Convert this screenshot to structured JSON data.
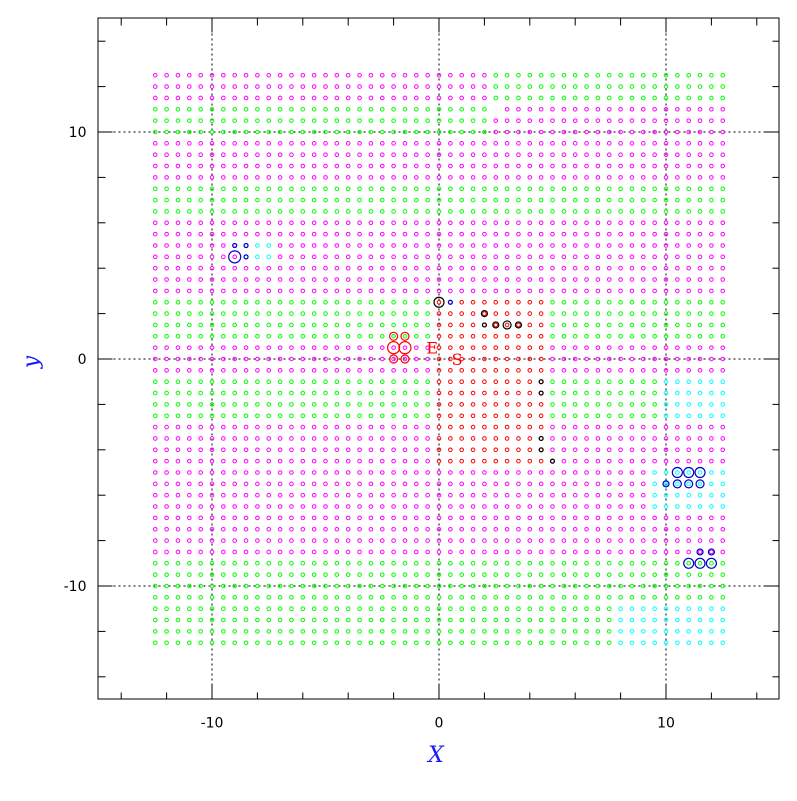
{
  "chart_data": {
    "type": "scatter",
    "xlabel": "X",
    "ylabel": "y",
    "xlim": [
      -15,
      15
    ],
    "ylim": [
      -15,
      15
    ],
    "xticks": [
      -10,
      0,
      10
    ],
    "yticks": [
      -10,
      0,
      10
    ],
    "xminorticks": [
      -14,
      -12,
      -8,
      -6,
      -4,
      -2,
      2,
      4,
      6,
      8,
      12,
      14
    ],
    "yminorticks": [
      -14,
      -12,
      -8,
      -6,
      -4,
      -2,
      2,
      4,
      6,
      8,
      12,
      14
    ],
    "grid": true,
    "point_grid": {
      "x": [
        -12.5,
        -12,
        -11.5,
        -11,
        -10.5,
        -10,
        -9.5,
        -9,
        -8.5,
        -8,
        -7.5,
        -7,
        -6.5,
        -6,
        -5.5,
        -5,
        -4.5,
        -4,
        -3.5,
        -3,
        -2.5,
        -2,
        -1.5,
        -1,
        -0.5,
        0,
        0.5,
        1,
        1.5,
        2,
        2.5,
        3,
        3.5,
        4,
        4.5,
        5,
        5.5,
        6,
        6.5,
        7,
        7.5,
        8,
        8.5,
        9,
        9.5,
        10,
        10.5,
        11,
        11.5,
        12,
        12.5
      ],
      "y": [
        12.5,
        12,
        11.5,
        11,
        10.5,
        10,
        9.5,
        9,
        8.5,
        8,
        7.5,
        7,
        6.5,
        6,
        5.5,
        5,
        4.5,
        4,
        3.5,
        3,
        2.5,
        2,
        1.5,
        1,
        0.5,
        0,
        -0.5,
        -1,
        -1.5,
        -2,
        -2.5,
        -3,
        -3.5,
        -4,
        -4.5,
        -5,
        -5.5,
        -6,
        -6.5,
        -7,
        -7.5,
        -8,
        -8.5,
        -9,
        -9.5,
        -10,
        -10.5,
        -11,
        -11.5,
        -12,
        -12.5
      ],
      "palette": {
        "m": "#ff00ff",
        "g": "#00ff00",
        "c": "#00ffff",
        "r": "#ff0000"
      },
      "rows": [
        "mmmmmmmmmmmmmmmmmmmmmmmmmmmmmmggggggggggggggggggggg",
        "mmmmmmmmmmmmmmmmmmmmmmmmmmmmmmggggggggggggggggggggg",
        "mmmmmmmmmmmmmmmmmmmmmmmmmmmmmmggggggggggggggggggggg",
        "gggggggggggggggggggggggggggggglmmmmmmmmmmmmmmmmmmmm",
        "ggggggggggggggggggggggggggggggmmmmmmmmmmmmmmmmmmmmm",
        "ggggggggggggggggggggggggggggggmmmmmmmmmmmmmmmmmmmmm",
        "mmmmmmmmmmmmmmmmmmmmmmmmmmmmmmmmmmmmmmmmmmmmmmmmmmm",
        "mmmmmmmmmmmmmmmmmmmmmmmmmmmmmmmmmmmmmmmmmmmmmmmmmmm",
        "mmmmmmmmmmmmmmmmmmmmmmmmmmmmmmmmmmmmmmmmmmmmmmmmmmm",
        "mmmmmmmmmmmmmmmmmmmmmmmmmmmmmmmmmmmmmmmmmmmmmmmmmmm",
        "ggggggggggggggggggggggggggggggggggggggggggggggggggg",
        "ggggggggggggggggggggggggggggggggggggggggggggggggggg",
        "ggggggggggggggggggggggggggggggggggggggggggggggggggg",
        "mmmmmmmmmmmmmmmmmmmmmmmmmmmmmmmmmmmmmmmmmmmmmmmmmmm",
        "mmmmmmmmmmmmmmmmmmmmmmmmmmmmmmmmmmmmmmmmmmmmmmmmmmm",
        "mmmmmmmmcccmmmmmmmmmmmmmmmmmmmmmmmmmmmmmmmmmmmmmmmm",
        "mmmmmmmmcccmmmmmmmmmmmmmmmmmmmmmmmmmmmmmmmmmmmmmmmm",
        "mmmmmmmmmmmmmmmmmmmmmmmmmmmmmmmmmmmmmmmmmmmmmmmmmmm",
        "mmmmmmmmmmmmmmmmmmmmmmmmmmmmmmmmmmmmmmmmmmmmmmmmmmm",
        "mmmmmmmmmmmmmmmmmmmmmmmmmmmmmmmmmmmmmmmmmmmmmmmmmmm",
        "gggggggggggggggggggggggggrrrrrrrrrrggggggggggggggggg",
        "gggggggggggggggggggggggggrrrrrrrrrrggggggggggggggggg",
        "gggggggggggggggggggggggggrrrrrrrrrrggggggggggggggggg",
        "gggggggggggggggggggggggggrrrrrrrrrrggggggggggggggggg",
        "mmmmmmmmmmmmmmmmmmmmmmmmmrrrrrrrrrrmmmmmmmmmmmmmmmmm",
        "mmmmmmmmmmmmmmmmmmmmmmmmmrrrrrrrrrrmmmmmmmmmmmmmmmmm",
        "mmmmmmmmmmmmmmmmmmmmmmmmmrrrrrrrrrrmmmmmmmmmmmmmmmmm",
        "gggggggggggggggggggggggggrrrrrrrrrrggggggggggcccccc",
        "gggggggggggggggggggggggggrrrrrrrrrrggggggggggcccccc",
        "gggggggggggggggggggggggggrrrrrrrrrrggggggggggcccccc",
        "gggggggggggggggggggggggggrrrrrrrrrrggggggggggcccccc",
        "mmmmmmmmmmmmmmmmmmmmmmmmmrrrrrrrrrrmmmmmmmmmmmmmmmmm",
        "mmmmmmmmmmmmmmmmmmmmmmmmmrrrrrrrrrrmmmmmmmmmmmmmmmmm",
        "mmmmmmmmmmmmmmmmmmmmmmmmmrrrrrrrrrrmmmmmmmmmmmmmmmmm",
        "mmmmmmmmmmmmmmmmmmmmmmmmmrrrrrrrrrrmmmmmmmmmmmmmmmmm",
        "mmmmmmmmmmmmmmmmmmmmmmmmmmmmmmmmmmmmmmmmmmmmcccccccc",
        "mmmmmmmmmmmmmmmmmmmmmmmmmmmmmmmmmmmmmmmmmmmmcccccccc",
        "mmmmmmmmmmmmmmmmmmmmmmmmmmmmmmmmmmmmmmmmmmmmcccccccc",
        "mmmmmmmmmmmmmmmmmmmmmmmmmmmmmmmmmmmmmmmmmmmmcccccccc",
        "mmmmmmmmmmmmmmmmmmmmmmmmmmmmmmmmmmmmmmmmmmmmmmmmmmm",
        "mmmmmmmmmmmmmmmmmmmmmmmmmmmmmmmmmmmmmmmmmmmmmmmmmmm",
        "mmmmmmmmmmmmmmmmmmmmmmmmmmmmmmmmmmmmmmmmmmmmmmmmmmm",
        "mmmmmmmmmmmmmmmmmmmmmmmmmmmmmmmmmmmmmmmmmmmmmmmmmmm",
        "ggggggggggggggggggggggggggggggggggggggggggggggggggg",
        "ggggggggggggggggggggggggggggggggggggggggggggggggggg",
        "ggggggggggggggggggggggggggggggggggggggggggggggggggg",
        "ggggggggggggggggggggggggggggggggggggggggggggggggggg",
        "gggggggggggggggggggggggggggggggggggggggggcccccccccc",
        "gggggggggggggggggggggggggggggggggggggggggcccccccccc",
        "gggggggggggggggggggggggggggggggggggggggggcccccccccc",
        "gggggggggggggggggggggggggggggggggggggggggcccccccccc"
      ]
    },
    "series": [
      {
        "name": "blue",
        "color": "#0000cc",
        "x": [
          -9,
          -8.5,
          -9,
          -8.5,
          0.5,
          10.5,
          11,
          11.5,
          10.5,
          11,
          11.5,
          10,
          11,
          11.5,
          12,
          11.5,
          12
        ],
        "values": [
          4.5,
          4.5,
          5,
          5,
          2.5,
          -5,
          -5,
          -5,
          -5.5,
          -5.5,
          -5.5,
          -5.5,
          -9,
          -9,
          -9,
          -8.5,
          -8.5
        ],
        "sizes": [
          6,
          2,
          2,
          2,
          2,
          5,
          5,
          5,
          4,
          4,
          4,
          3,
          5,
          5,
          5,
          3,
          3
        ]
      },
      {
        "name": "black",
        "color": "#000000",
        "x": [
          0,
          2,
          2,
          2.5,
          3,
          3.5,
          4.5,
          4.5,
          4.5,
          4.5,
          5
        ],
        "values": [
          2.5,
          2,
          1.5,
          1.5,
          1.5,
          1.5,
          -1,
          -1.5,
          -3.5,
          -4,
          -4.5
        ],
        "sizes": [
          5,
          3,
          2,
          3,
          4,
          3,
          2,
          2,
          2,
          2,
          2
        ]
      },
      {
        "name": "red",
        "color": "#ff0000",
        "x": [
          -2,
          -1.5,
          -2,
          -1.5,
          -2,
          -1.5
        ],
        "values": [
          0.5,
          0.5,
          1,
          1,
          0,
          0
        ],
        "sizes": [
          6,
          6,
          4,
          4,
          4,
          4
        ]
      }
    ],
    "annotations": [
      {
        "text": "S",
        "x": 0.8,
        "y": 0
      },
      {
        "text": "E",
        "x": -0.3,
        "y": 0.5
      }
    ],
    "annotation_color": "#ff0000"
  }
}
